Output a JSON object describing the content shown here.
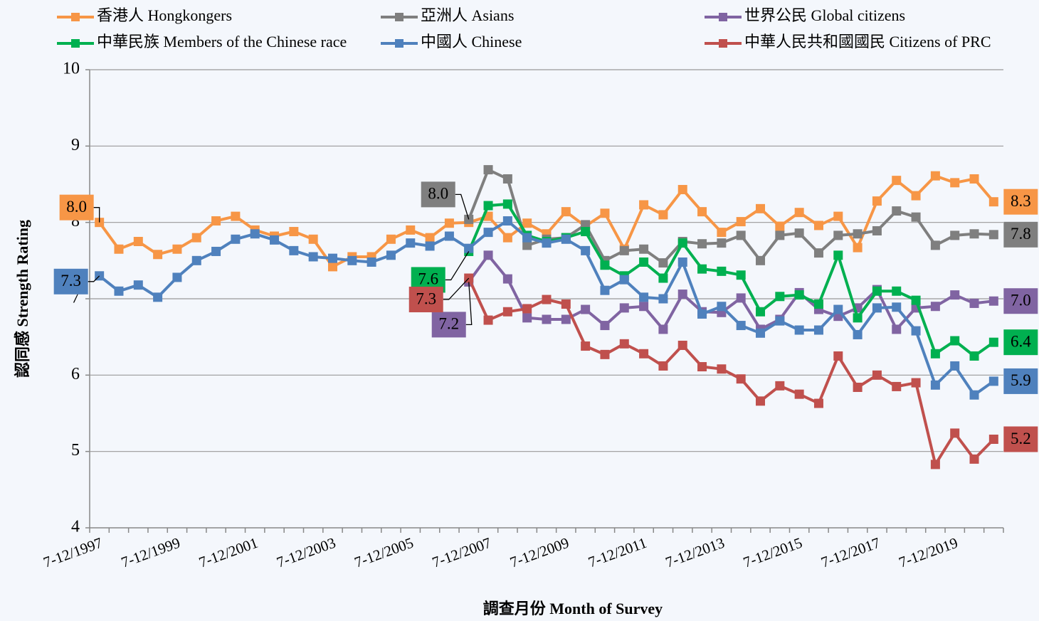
{
  "chart_data": {
    "type": "line",
    "x_label": "調查月份 Month of Survey",
    "y_label": "認同感 Strength Rating",
    "ylim": [
      4,
      10
    ],
    "yticks": [
      4,
      5,
      6,
      7,
      8,
      9,
      10
    ],
    "grid": true,
    "categories": [
      "7-12/1997",
      null,
      null,
      null,
      "7-12/1999",
      null,
      null,
      null,
      "7-12/2001",
      null,
      null,
      null,
      "7-12/2003",
      null,
      null,
      null,
      "7-12/2005",
      null,
      null,
      null,
      "7-12/2007",
      null,
      null,
      null,
      "7-12/2009",
      null,
      null,
      null,
      "7-12/2011",
      null,
      null,
      null,
      "7-12/2013",
      null,
      null,
      null,
      "7-12/2015",
      null,
      null,
      null,
      "7-12/2017",
      null,
      null,
      null,
      "7-12/2019",
      null,
      null
    ],
    "series": [
      {
        "name": "香港人 Hongkongers",
        "color": "#f79646",
        "values": [
          8.0,
          7.65,
          7.75,
          7.58,
          7.65,
          7.8,
          8.02,
          8.08,
          7.9,
          7.82,
          7.88,
          7.78,
          7.42,
          7.55,
          7.55,
          7.78,
          7.9,
          7.8,
          7.99,
          8.0,
          8.08,
          7.8,
          7.99,
          7.85,
          8.14,
          7.95,
          8.12,
          7.65,
          8.23,
          8.1,
          8.43,
          8.14,
          7.87,
          8.01,
          8.18,
          7.95,
          8.13,
          7.96,
          8.08,
          7.67,
          8.28,
          8.55,
          8.35,
          8.61,
          8.52,
          8.57,
          8.27
        ],
        "value_labels": [
          "8.0",
          null,
          null,
          null,
          null,
          null,
          null,
          null,
          null,
          null,
          null,
          null,
          null,
          null,
          null,
          null,
          null,
          null,
          null,
          null,
          null,
          null,
          null,
          null,
          null,
          null,
          null,
          null,
          null,
          null,
          null,
          null,
          null,
          null,
          null,
          null,
          null,
          null,
          null,
          null,
          null,
          null,
          null,
          null,
          null,
          null,
          "8.3"
        ]
      },
      {
        "name": "亞洲人 Asians",
        "color": "#7f7f7f",
        "values": [
          null,
          null,
          null,
          null,
          null,
          null,
          null,
          null,
          null,
          null,
          null,
          null,
          null,
          null,
          null,
          null,
          null,
          null,
          null,
          8.04,
          8.69,
          8.57,
          7.7,
          7.78,
          7.8,
          7.97,
          7.5,
          7.63,
          7.65,
          7.47,
          7.75,
          7.72,
          7.73,
          7.83,
          7.5,
          7.83,
          7.86,
          7.6,
          7.83,
          7.85,
          7.89,
          8.15,
          8.07,
          7.7,
          7.83,
          7.85,
          7.84
        ],
        "value_labels": [
          null,
          null,
          null,
          null,
          null,
          null,
          null,
          null,
          null,
          null,
          null,
          null,
          null,
          null,
          null,
          null,
          null,
          null,
          null,
          "8.0",
          null,
          null,
          null,
          null,
          null,
          null,
          null,
          null,
          null,
          null,
          null,
          null,
          null,
          null,
          null,
          null,
          null,
          null,
          null,
          null,
          null,
          null,
          null,
          null,
          null,
          null,
          "7.8"
        ]
      },
      {
        "name": "世界公民 Global citizens",
        "color": "#8064a2",
        "values": [
          null,
          null,
          null,
          null,
          null,
          null,
          null,
          null,
          null,
          null,
          null,
          null,
          null,
          null,
          null,
          null,
          null,
          null,
          null,
          7.22,
          7.57,
          7.26,
          6.75,
          6.73,
          6.73,
          6.86,
          6.65,
          6.88,
          6.9,
          6.6,
          7.06,
          6.83,
          6.82,
          7.01,
          6.6,
          6.73,
          7.08,
          6.86,
          6.77,
          6.88,
          7.12,
          6.6,
          6.88,
          6.9,
          7.05,
          6.94,
          6.97
        ],
        "value_labels": [
          null,
          null,
          null,
          null,
          null,
          null,
          null,
          null,
          null,
          null,
          null,
          null,
          null,
          null,
          null,
          null,
          null,
          null,
          null,
          "7.2",
          null,
          null,
          null,
          null,
          null,
          null,
          null,
          null,
          null,
          null,
          null,
          null,
          null,
          null,
          null,
          null,
          null,
          null,
          null,
          null,
          null,
          null,
          null,
          null,
          null,
          null,
          "7.0"
        ]
      },
      {
        "name": "中華民族 Members of the Chinese race",
        "color": "#00b050",
        "values": [
          null,
          null,
          null,
          null,
          null,
          null,
          null,
          null,
          null,
          null,
          null,
          null,
          null,
          null,
          null,
          null,
          null,
          null,
          null,
          7.62,
          8.22,
          8.24,
          7.83,
          7.75,
          7.8,
          7.88,
          7.44,
          7.3,
          7.48,
          7.27,
          7.73,
          7.39,
          7.36,
          7.31,
          6.83,
          7.03,
          7.05,
          6.93,
          7.57,
          6.75,
          7.1,
          7.1,
          6.98,
          6.28,
          6.45,
          6.25,
          6.43
        ],
        "value_labels": [
          null,
          null,
          null,
          null,
          null,
          null,
          null,
          null,
          null,
          null,
          null,
          null,
          null,
          null,
          null,
          null,
          null,
          null,
          null,
          "7.6",
          null,
          null,
          null,
          null,
          null,
          null,
          null,
          null,
          null,
          null,
          null,
          null,
          null,
          null,
          null,
          null,
          null,
          null,
          null,
          null,
          null,
          null,
          null,
          null,
          null,
          null,
          "6.4"
        ]
      },
      {
        "name": "中國人 Chinese",
        "color": "#4f81bd",
        "values": [
          7.3,
          7.1,
          7.18,
          7.02,
          7.28,
          7.5,
          7.62,
          7.78,
          7.85,
          7.77,
          7.63,
          7.55,
          7.53,
          7.5,
          7.48,
          7.57,
          7.73,
          7.69,
          7.82,
          7.66,
          7.87,
          8.02,
          7.8,
          7.73,
          7.78,
          7.63,
          7.11,
          7.25,
          7.02,
          7.0,
          7.48,
          6.8,
          6.9,
          6.65,
          6.55,
          6.71,
          6.59,
          6.59,
          6.86,
          6.53,
          6.88,
          6.89,
          6.58,
          5.87,
          6.12,
          5.74,
          5.92
        ],
        "value_labels": [
          "7.3",
          null,
          null,
          null,
          null,
          null,
          null,
          null,
          null,
          null,
          null,
          null,
          null,
          null,
          null,
          null,
          null,
          null,
          null,
          null,
          null,
          null,
          null,
          null,
          null,
          null,
          null,
          null,
          null,
          null,
          null,
          null,
          null,
          null,
          null,
          null,
          null,
          null,
          null,
          null,
          null,
          null,
          null,
          null,
          null,
          null,
          "5.9"
        ]
      },
      {
        "name": "中華人民共和國國民 Citizens of PRC",
        "color": "#c0504d",
        "values": [
          null,
          null,
          null,
          null,
          null,
          null,
          null,
          null,
          null,
          null,
          null,
          null,
          null,
          null,
          null,
          null,
          null,
          null,
          null,
          7.27,
          6.72,
          6.83,
          6.87,
          6.99,
          6.93,
          6.38,
          6.27,
          6.41,
          6.28,
          6.12,
          6.39,
          6.11,
          6.08,
          5.95,
          5.66,
          5.86,
          5.75,
          5.63,
          6.25,
          5.84,
          6.0,
          5.85,
          5.9,
          4.83,
          5.24,
          4.9,
          5.16
        ],
        "value_labels": [
          null,
          null,
          null,
          null,
          null,
          null,
          null,
          null,
          null,
          null,
          null,
          null,
          null,
          null,
          null,
          null,
          null,
          null,
          null,
          "7.3",
          null,
          null,
          null,
          null,
          null,
          null,
          null,
          null,
          null,
          null,
          null,
          null,
          null,
          null,
          null,
          null,
          null,
          null,
          null,
          null,
          null,
          null,
          null,
          null,
          null,
          null,
          "5.2"
        ]
      }
    ]
  }
}
